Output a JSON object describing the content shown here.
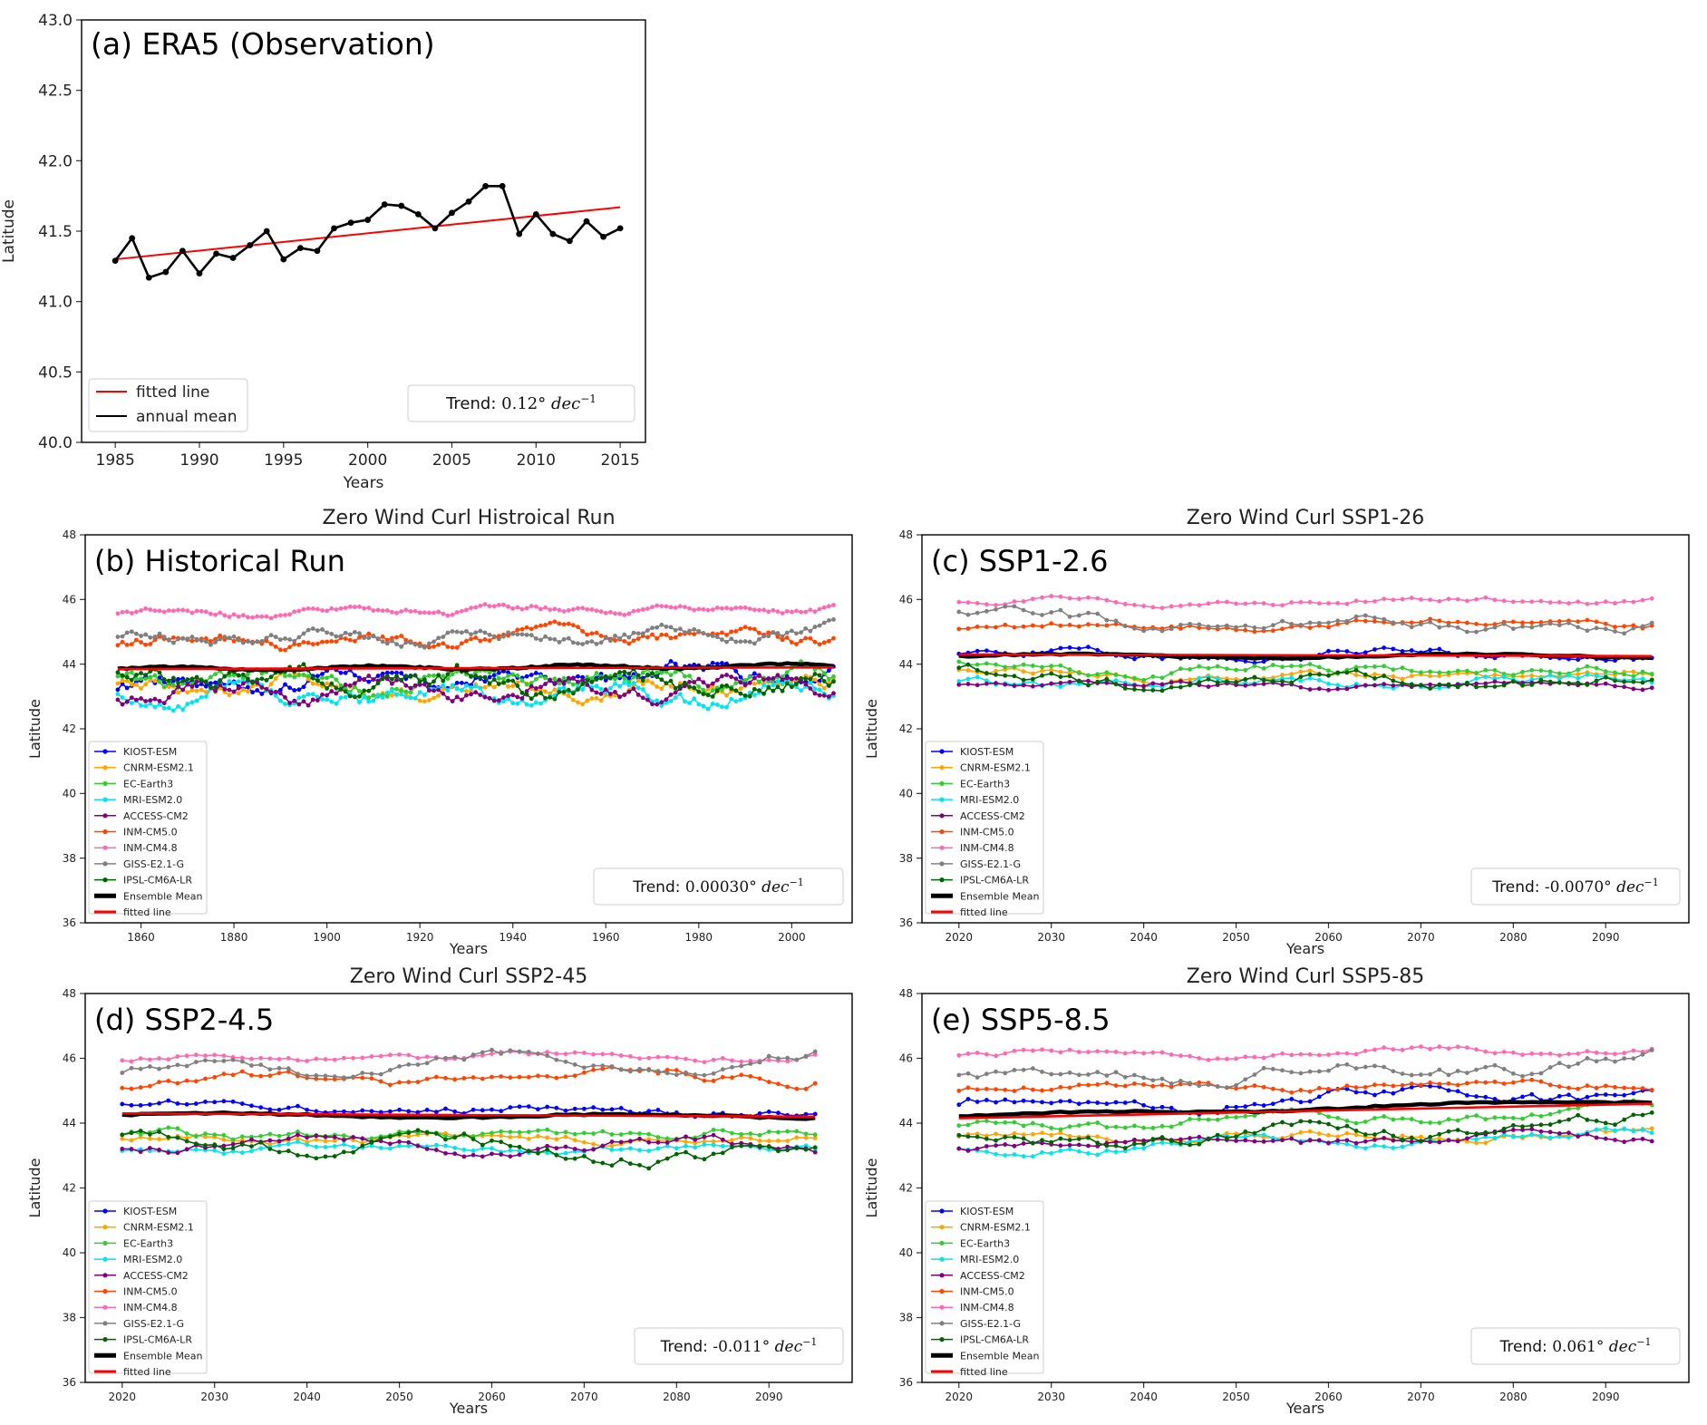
{
  "chart_data": [
    {
      "id": "a",
      "type": "line",
      "tag": "(a) ERA5 (Observation)",
      "title": "",
      "xlabel": "Years",
      "ylabel": "Latitude",
      "xlim": [
        1983,
        2016.5
      ],
      "ylim": [
        40.0,
        43.0
      ],
      "xticks": [
        1985,
        1990,
        1995,
        2000,
        2005,
        2010,
        2015
      ],
      "yticks": [
        40.0,
        40.5,
        41.0,
        41.5,
        42.0,
        42.5,
        43.0
      ],
      "trend": {
        "prefix": "Trend: ",
        "value": "0.12",
        "unit": "dec",
        "exponent": "−1"
      },
      "legend": [
        {
          "label": "fitted line",
          "color": "#ff0000"
        },
        {
          "label": "annual mean",
          "color": "#000000"
        }
      ],
      "x": [
        1985,
        1986,
        1987,
        1988,
        1989,
        1990,
        1991,
        1992,
        1993,
        1994,
        1995,
        1996,
        1997,
        1998,
        1999,
        2000,
        2001,
        2002,
        2003,
        2004,
        2005,
        2006,
        2007,
        2008,
        2009,
        2010,
        2011,
        2012,
        2013,
        2014,
        2015
      ],
      "series": [
        {
          "name": "annual mean",
          "color": "#000000",
          "values": [
            41.29,
            41.45,
            41.17,
            41.21,
            41.36,
            41.2,
            41.34,
            41.31,
            41.4,
            41.5,
            41.3,
            41.38,
            41.36,
            41.52,
            41.56,
            41.58,
            41.69,
            41.68,
            41.62,
            41.52,
            41.63,
            41.71,
            41.82,
            41.82,
            41.48,
            41.62,
            41.48,
            41.43,
            41.57,
            41.46,
            41.52
          ]
        },
        {
          "name": "fitted line",
          "color": "#ff0000",
          "start": 41.3,
          "end": 41.67
        }
      ]
    },
    {
      "id": "b",
      "type": "line",
      "tag": "(b) Historical Run",
      "title": "Zero Wind Curl Histroical Run",
      "xlabel": "Years",
      "ylabel": "Latitude",
      "xlim": [
        1848,
        2013
      ],
      "ylim": [
        36,
        48
      ],
      "xticks": [
        1860,
        1880,
        1900,
        1920,
        1940,
        1960,
        1980,
        2000
      ],
      "yticks": [
        36,
        38,
        40,
        42,
        44,
        46,
        48
      ],
      "x_start": 1855,
      "x_end": 2009,
      "x_step": 1,
      "trend": {
        "prefix": "Trend: ",
        "value": "0.00030",
        "unit": "dec",
        "exponent": "−1"
      },
      "series": [
        {
          "name": "KIOST-ESM",
          "color": "#0000ff",
          "base": 43.3,
          "amp": 0.35,
          "slope": 0.5
        },
        {
          "name": "CNRM-ESM2.1",
          "color": "#ffa500",
          "base": 43.3,
          "amp": 0.35,
          "slope": 0.0
        },
        {
          "name": "EC-Earth3",
          "color": "#32cd32",
          "base": 43.5,
          "amp": 0.35,
          "slope": 0.0
        },
        {
          "name": "MRI-ESM2.0",
          "color": "#00e5ee",
          "base": 43.1,
          "amp": 0.4,
          "slope": 0.0
        },
        {
          "name": "ACCESS-CM2",
          "color": "#800080",
          "base": 43.1,
          "amp": 0.35,
          "slope": 0.2
        },
        {
          "name": "INM-CM5.0",
          "color": "#ff4500",
          "base": 44.75,
          "amp": 0.25,
          "slope": 0.1
        },
        {
          "name": "INM-CM4.8",
          "color": "#ff69b4",
          "base": 45.6,
          "amp": 0.15,
          "slope": 0.1
        },
        {
          "name": "GISS-E2.1-G",
          "color": "#808080",
          "base": 44.75,
          "amp": 0.25,
          "slope": 0.2
        },
        {
          "name": "IPSL-CM6A-LR",
          "color": "#006400",
          "base": 43.5,
          "amp": 0.4,
          "slope": -0.2
        }
      ],
      "ensemble": {
        "name": "Ensemble Mean",
        "color": "#000000",
        "start": 43.85,
        "end": 43.95
      },
      "fit": {
        "name": "fitted line",
        "color": "#ff0000",
        "start": 43.85,
        "end": 43.9
      }
    },
    {
      "id": "c",
      "type": "line",
      "tag": "(c) SSP1-2.6",
      "title": "Zero Wind Curl SSP1-26",
      "xlabel": "Years",
      "ylabel": "Latitude",
      "xlim": [
        2016,
        2099
      ],
      "ylim": [
        36,
        48
      ],
      "xticks": [
        2020,
        2030,
        2040,
        2050,
        2060,
        2070,
        2080,
        2090
      ],
      "yticks": [
        36,
        38,
        40,
        42,
        44,
        46,
        48
      ],
      "x_start": 2020,
      "x_end": 2095,
      "x_step": 1,
      "trend": {
        "prefix": "Trend: ",
        "value": "-0.0070",
        "unit": "dec",
        "exponent": "−1"
      },
      "series": [
        {
          "name": "KIOST-ESM",
          "color": "#0000ff",
          "base": 44.3,
          "amp": 0.2,
          "slope": 0.0
        },
        {
          "name": "CNRM-ESM2.1",
          "color": "#ffa500",
          "base": 43.7,
          "amp": 0.2,
          "slope": -0.1
        },
        {
          "name": "EC-Earth3",
          "color": "#32cd32",
          "base": 43.9,
          "amp": 0.25,
          "slope": -0.2
        },
        {
          "name": "MRI-ESM2.0",
          "color": "#00e5ee",
          "base": 43.4,
          "amp": 0.25,
          "slope": 0.1
        },
        {
          "name": "ACCESS-CM2",
          "color": "#800080",
          "base": 43.4,
          "amp": 0.15,
          "slope": -0.1
        },
        {
          "name": "INM-CM5.0",
          "color": "#ff4500",
          "base": 45.15,
          "amp": 0.2,
          "slope": 0.1
        },
        {
          "name": "INM-CM4.8",
          "color": "#ff69b4",
          "base": 45.9,
          "amp": 0.15,
          "slope": 0.1
        },
        {
          "name": "GISS-E2.1-G",
          "color": "#808080",
          "base": 45.4,
          "amp": 0.3,
          "slope": -0.2
        },
        {
          "name": "IPSL-CM6A-LR",
          "color": "#006400",
          "base": 43.6,
          "amp": 0.3,
          "slope": -0.1
        }
      ],
      "ensemble": {
        "name": "Ensemble Mean",
        "color": "#000000",
        "start": 44.25,
        "end": 44.25
      },
      "fit": {
        "name": "fitted line",
        "color": "#ff0000",
        "start": 44.3,
        "end": 44.25
      }
    },
    {
      "id": "d",
      "type": "line",
      "tag": "(d) SSP2-4.5",
      "title": "Zero Wind Curl SSP2-45",
      "xlabel": "Years",
      "ylabel": "Latitude",
      "xlim": [
        2016,
        2099
      ],
      "ylim": [
        36,
        48
      ],
      "xticks": [
        2020,
        2030,
        2040,
        2050,
        2060,
        2070,
        2080,
        2090
      ],
      "yticks": [
        36,
        38,
        40,
        42,
        44,
        46,
        48
      ],
      "x_start": 2020,
      "x_end": 2095,
      "x_step": 1,
      "trend": {
        "prefix": "Trend: ",
        "value": "-0.011",
        "unit": "dec",
        "exponent": "−1"
      },
      "series": [
        {
          "name": "KIOST-ESM",
          "color": "#0000ff",
          "base": 44.5,
          "amp": 0.2,
          "slope": -0.2
        },
        {
          "name": "CNRM-ESM2.1",
          "color": "#ffa500",
          "base": 43.5,
          "amp": 0.2,
          "slope": 0.0
        },
        {
          "name": "EC-Earth3",
          "color": "#32cd32",
          "base": 43.6,
          "amp": 0.25,
          "slope": 0.1
        },
        {
          "name": "MRI-ESM2.0",
          "color": "#00e5ee",
          "base": 43.2,
          "amp": 0.2,
          "slope": 0.0
        },
        {
          "name": "ACCESS-CM2",
          "color": "#800080",
          "base": 43.4,
          "amp": 0.25,
          "slope": -0.1
        },
        {
          "name": "INM-CM5.0",
          "color": "#ff4500",
          "base": 45.3,
          "amp": 0.25,
          "slope": 0.2
        },
        {
          "name": "INM-CM4.8",
          "color": "#ff69b4",
          "base": 46.0,
          "amp": 0.15,
          "slope": 0.1
        },
        {
          "name": "GISS-E2.1-G",
          "color": "#808080",
          "base": 45.5,
          "amp": 0.3,
          "slope": 0.6
        },
        {
          "name": "IPSL-CM6A-LR",
          "color": "#006400",
          "base": 43.5,
          "amp": 0.35,
          "slope": -0.5
        }
      ],
      "ensemble": {
        "name": "Ensemble Mean",
        "color": "#000000",
        "start": 44.25,
        "end": 44.2
      },
      "fit": {
        "name": "fitted line",
        "color": "#ff0000",
        "start": 44.3,
        "end": 44.2
      }
    },
    {
      "id": "e",
      "type": "line",
      "tag": "(e) SSP5-8.5",
      "title": "Zero Wind Curl SSP5-85",
      "xlabel": "Years",
      "ylabel": "Latitude",
      "xlim": [
        2016,
        2099
      ],
      "ylim": [
        36,
        48
      ],
      "xticks": [
        2020,
        2030,
        2040,
        2050,
        2060,
        2070,
        2080,
        2090
      ],
      "yticks": [
        36,
        38,
        40,
        42,
        44,
        46,
        48
      ],
      "x_start": 2020,
      "x_end": 2095,
      "x_step": 1,
      "trend": {
        "prefix": "Trend: ",
        "value": "0.061",
        "unit": "dec",
        "exponent": "−1"
      },
      "series": [
        {
          "name": "KIOST-ESM",
          "color": "#0000ff",
          "base": 44.6,
          "amp": 0.3,
          "slope": 0.3
        },
        {
          "name": "CNRM-ESM2.1",
          "color": "#ffa500",
          "base": 43.5,
          "amp": 0.2,
          "slope": 0.3
        },
        {
          "name": "EC-Earth3",
          "color": "#32cd32",
          "base": 43.8,
          "amp": 0.25,
          "slope": 0.6
        },
        {
          "name": "MRI-ESM2.0",
          "color": "#00e5ee",
          "base": 43.2,
          "amp": 0.2,
          "slope": 0.4
        },
        {
          "name": "ACCESS-CM2",
          "color": "#800080",
          "base": 43.3,
          "amp": 0.2,
          "slope": 0.3
        },
        {
          "name": "INM-CM5.0",
          "color": "#ff4500",
          "base": 45.1,
          "amp": 0.2,
          "slope": 0.2
        },
        {
          "name": "INM-CM4.8",
          "color": "#ff69b4",
          "base": 46.1,
          "amp": 0.15,
          "slope": 0.2
        },
        {
          "name": "GISS-E2.1-G",
          "color": "#808080",
          "base": 45.3,
          "amp": 0.35,
          "slope": 0.6
        },
        {
          "name": "IPSL-CM6A-LR",
          "color": "#006400",
          "base": 43.4,
          "amp": 0.3,
          "slope": 0.6
        }
      ],
      "ensemble": {
        "name": "Ensemble Mean",
        "color": "#000000",
        "start": 44.2,
        "end": 44.7
      },
      "fit": {
        "name": "fitted line",
        "color": "#ff0000",
        "start": 44.15,
        "end": 44.6
      }
    }
  ]
}
